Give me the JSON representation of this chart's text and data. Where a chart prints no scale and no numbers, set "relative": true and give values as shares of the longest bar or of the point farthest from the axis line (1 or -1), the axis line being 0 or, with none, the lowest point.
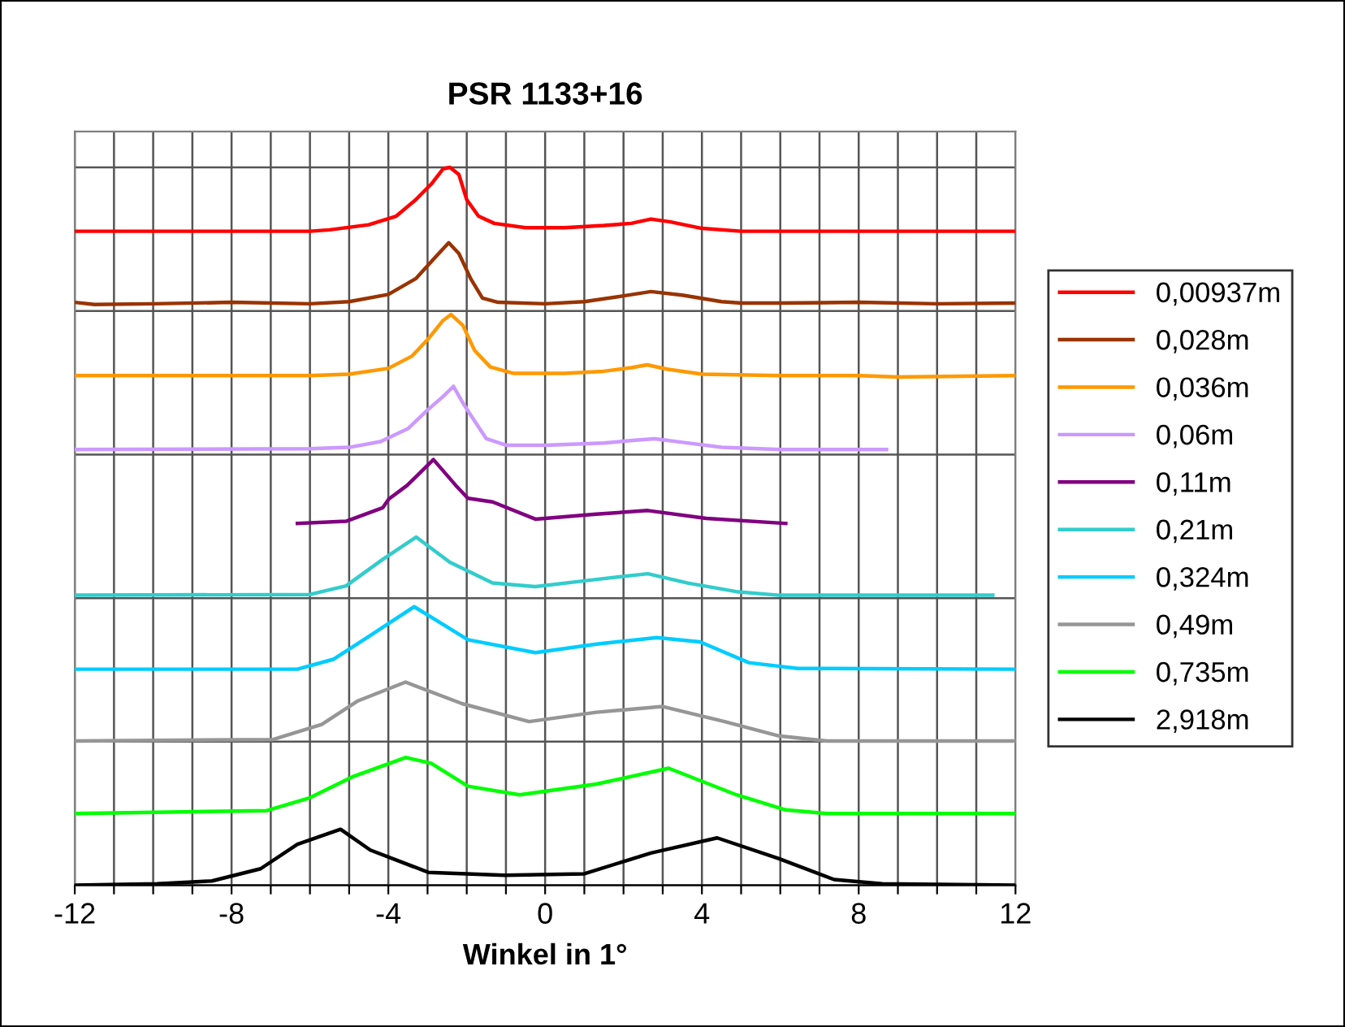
{
  "chart_data": {
    "type": "line",
    "title": "PSR 1133+16",
    "xlabel": "Winkel in 1°",
    "relative": true,
    "grid": true,
    "legend": "right",
    "marker": "none",
    "line_style": "solid",
    "xlim": [
      -12,
      12
    ],
    "xticks": [
      -12,
      {
        "value": -11,
        "label": null
      },
      {
        "value": -10,
        "label": null
      },
      {
        "value": -9,
        "label": null
      },
      -8,
      {
        "value": -7,
        "label": null
      },
      {
        "value": -6,
        "label": null
      },
      {
        "value": -5,
        "label": null
      },
      -4,
      {
        "value": -3,
        "label": null
      },
      {
        "value": -2,
        "label": null
      },
      {
        "value": -1,
        "label": null
      },
      0,
      {
        "value": 1,
        "label": null
      },
      {
        "value": 2,
        "label": null
      },
      {
        "value": 3,
        "label": null
      },
      4,
      {
        "value": 5,
        "label": null
      },
      {
        "value": 6,
        "label": null
      },
      {
        "value": 7,
        "label": null
      },
      8,
      {
        "value": 9,
        "label": null
      },
      {
        "value": 10,
        "label": null
      },
      {
        "value": 11,
        "label": null
      },
      12
    ],
    "series": [
      {
        "name": "0,00937m",
        "color": "#ff0000",
        "x": [
          -12,
          -6,
          -5.5,
          -4.5,
          -3.8,
          -3.3,
          -2.9,
          -2.6,
          -2.43,
          -2.2,
          -2.0,
          -1.7,
          -1.3,
          -0.5,
          0.5,
          1.5,
          2.2,
          2.7,
          3.2,
          4.0,
          5,
          12
        ],
        "values": [
          0.911,
          0.911,
          0.913,
          0.92,
          0.932,
          0.955,
          0.977,
          0.998,
          1.0,
          0.99,
          0.955,
          0.932,
          0.922,
          0.916,
          0.916,
          0.919,
          0.922,
          0.928,
          0.924,
          0.915,
          0.911,
          0.911
        ]
      },
      {
        "name": "0,028m",
        "color": "#993300",
        "x": [
          -12,
          -11.5,
          -10,
          -8,
          -6,
          -5,
          -4,
          -3.3,
          -2.8,
          -2.46,
          -2.2,
          -1.9,
          -1.6,
          -1.2,
          0,
          1,
          2,
          2.7,
          3.5,
          4.5,
          5,
          6,
          8,
          10,
          12
        ],
        "values": [
          0.812,
          0.809,
          0.81,
          0.812,
          0.81,
          0.813,
          0.823,
          0.845,
          0.875,
          0.895,
          0.88,
          0.845,
          0.818,
          0.812,
          0.81,
          0.813,
          0.821,
          0.827,
          0.822,
          0.813,
          0.811,
          0.811,
          0.812,
          0.81,
          0.811
        ]
      },
      {
        "name": "0,036m",
        "color": "#ff9900",
        "x": [
          -12,
          -6,
          -5,
          -4,
          -3.4,
          -3.0,
          -2.6,
          -2.4,
          -2.1,
          -1.8,
          -1.4,
          -0.8,
          0.5,
          1.5,
          2.2,
          2.6,
          3.1,
          4,
          6,
          8,
          9,
          12
        ],
        "values": [
          0.71,
          0.71,
          0.712,
          0.72,
          0.737,
          0.76,
          0.787,
          0.795,
          0.78,
          0.745,
          0.722,
          0.713,
          0.713,
          0.716,
          0.721,
          0.725,
          0.719,
          0.712,
          0.71,
          0.71,
          0.708,
          0.71
        ]
      },
      {
        "name": "0,06m",
        "color": "#cc99ff",
        "x": [
          -12,
          -6,
          -5,
          -4.2,
          -3.5,
          -3.0,
          -2.6,
          -2.34,
          -2.1,
          -1.9,
          -1.5,
          -1,
          0,
          1.5,
          2.3,
          2.8,
          3.5,
          4.5,
          6,
          8.71
        ],
        "values": [
          0.607,
          0.608,
          0.61,
          0.618,
          0.636,
          0.662,
          0.681,
          0.695,
          0.672,
          0.655,
          0.622,
          0.613,
          0.613,
          0.616,
          0.62,
          0.622,
          0.617,
          0.61,
          0.607,
          0.607
        ]
      },
      {
        "name": "0,11m",
        "color": "#800080",
        "x": [
          -6.32,
          -5.08,
          -4.14,
          -3.99,
          -3.52,
          -2.85,
          -2.28,
          -1.97,
          -1.34,
          -0.25,
          1.31,
          2.62,
          4.11,
          6.14
        ],
        "values": [
          0.504,
          0.507,
          0.526,
          0.538,
          0.557,
          0.593,
          0.557,
          0.539,
          0.534,
          0.51,
          0.517,
          0.522,
          0.511,
          0.504
        ]
      },
      {
        "name": "0,21m",
        "color": "#33cccc",
        "x": [
          -12,
          -6.0,
          -5.08,
          -4.14,
          -3.29,
          -2.43,
          -1.34,
          -0.25,
          1.31,
          2.62,
          3.64,
          4.88,
          5.97,
          11.42
        ],
        "values": [
          0.404,
          0.405,
          0.417,
          0.454,
          0.485,
          0.45,
          0.421,
          0.416,
          0.426,
          0.434,
          0.421,
          0.409,
          0.404,
          0.404
        ]
      },
      {
        "name": "0,324m",
        "color": "#00ccff",
        "x": [
          -12,
          -6.32,
          -5.39,
          -4.46,
          -3.34,
          -1.97,
          -0.25,
          1.31,
          2.85,
          3.95,
          5.2,
          6.45,
          12
        ],
        "values": [
          0.301,
          0.301,
          0.315,
          0.348,
          0.388,
          0.342,
          0.324,
          0.336,
          0.345,
          0.339,
          0.31,
          0.302,
          0.301
        ]
      },
      {
        "name": "0,49m",
        "color": "#969696",
        "x": [
          -12,
          -6.94,
          -5.7,
          -4.77,
          -3.56,
          -2.12,
          -0.41,
          1.31,
          3.0,
          4.58,
          5.97,
          7.2,
          12
        ],
        "values": [
          0.201,
          0.203,
          0.224,
          0.257,
          0.283,
          0.253,
          0.228,
          0.241,
          0.249,
          0.228,
          0.208,
          0.201,
          0.201
        ]
      },
      {
        "name": "0,735m",
        "color": "#00ff00",
        "x": [
          -12,
          -7.1,
          -6.0,
          -4.92,
          -3.56,
          -2.91,
          -1.97,
          -0.65,
          1.31,
          3.15,
          4.88,
          6.14,
          7.2,
          12
        ],
        "values": [
          0.1,
          0.104,
          0.122,
          0.151,
          0.178,
          0.17,
          0.138,
          0.126,
          0.141,
          0.163,
          0.126,
          0.105,
          0.1,
          0.1
        ]
      },
      {
        "name": "2,918m",
        "color": "#000000",
        "x": [
          -12,
          -9.9,
          -8.5,
          -7.26,
          -6.32,
          -5.22,
          -4.46,
          -2.98,
          -1.03,
          1.0,
          2.7,
          4.39,
          5.97,
          7.37,
          8.6,
          12
        ],
        "values": [
          0.0,
          0.002,
          0.006,
          0.023,
          0.057,
          0.078,
          0.049,
          0.018,
          0.014,
          0.016,
          0.045,
          0.066,
          0.037,
          0.008,
          0.002,
          0.0
        ]
      }
    ]
  }
}
